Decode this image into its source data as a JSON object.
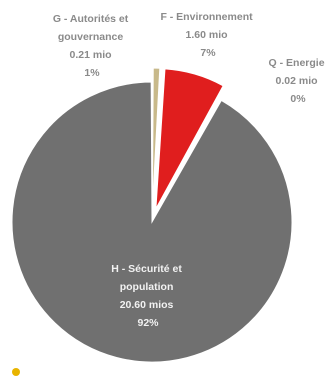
{
  "chart_data": {
    "type": "pie",
    "title": "",
    "slices": [
      {
        "lines": [
          "H - Sécurité et",
          "population",
          "20.60 mios",
          "92%"
        ],
        "value": 20.6,
        "percent": 92,
        "color": "#707070",
        "exploded": false
      },
      {
        "lines": [
          "G - Autorités et",
          "gouvernance",
          "0.21 mio",
          "1%"
        ],
        "value": 0.21,
        "percent": 1,
        "color": "#c8b98a",
        "exploded": true
      },
      {
        "lines": [
          "F - Environnement",
          "1.60 mio",
          "7%"
        ],
        "value": 1.6,
        "percent": 7,
        "color": "#e01e1e",
        "exploded": true
      },
      {
        "lines": [
          "Q - Energie",
          "0.02 mio",
          "0%"
        ],
        "value": 0.02,
        "percent": 0,
        "color": "#f2f2f2",
        "exploded": false
      }
    ]
  }
}
